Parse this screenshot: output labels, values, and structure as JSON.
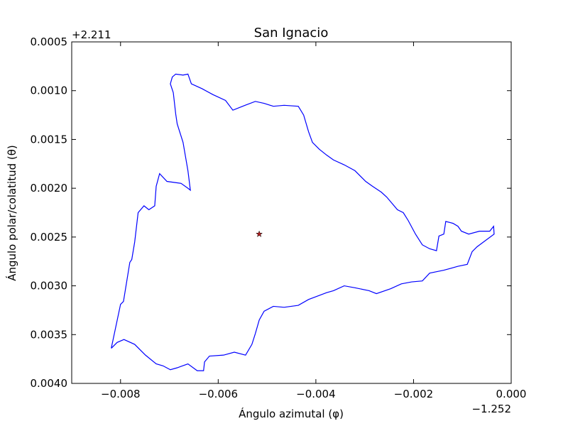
{
  "chart_data": {
    "type": "line",
    "title": "San Ignacio",
    "xlabel": "Ángulo azimutal (φ)",
    "ylabel": "Ángulo polar/colatitud (θ)",
    "x_offset_label": "−1.252",
    "y_offset_label": "+2.211",
    "color": "#0000ff",
    "x": [
      -0.00819,
      -0.008,
      -0.00794,
      -0.00781,
      -0.00777,
      -0.00771,
      -0.00764,
      -0.00752,
      -0.00742,
      -0.0073,
      -0.00727,
      -0.0072,
      -0.00705,
      -0.00676,
      -0.00662,
      -0.00657,
      -0.00662,
      -0.00672,
      -0.00684,
      -0.00687,
      -0.00692,
      -0.00698,
      -0.00694,
      -0.00687,
      -0.00672,
      -0.00662,
      -0.00655,
      -0.00633,
      -0.00611,
      -0.00585,
      -0.0057,
      -0.00545,
      -0.00524,
      -0.00506,
      -0.00487,
      -0.00465,
      -0.00436,
      -0.00425,
      -0.00415,
      -0.00407,
      -0.00393,
      -0.00378,
      -0.00364,
      -0.00342,
      -0.0032,
      -0.00298,
      -0.00284,
      -0.00266,
      -0.00255,
      -0.00233,
      -0.00221,
      -0.00211,
      -0.00196,
      -0.00182,
      -0.00167,
      -0.00153,
      -0.00148,
      -0.00138,
      -0.00134,
      -0.00119,
      -0.00109,
      -0.00102,
      -0.00087,
      -0.00065,
      -0.00044,
      -0.00036,
      -0.00035,
      -0.0007,
      -0.0008,
      -0.0009,
      -0.00109,
      -0.00138,
      -0.00167,
      -0.00182,
      -0.00204,
      -0.00225,
      -0.00247,
      -0.00276,
      -0.00291,
      -0.0032,
      -0.00342,
      -0.00364,
      -0.00378,
      -0.00415,
      -0.00436,
      -0.00465,
      -0.00487,
      -0.00506,
      -0.00516,
      -0.00524,
      -0.00531,
      -0.00544,
      -0.00567,
      -0.00589,
      -0.00618,
      -0.00628,
      -0.0063,
      -0.00643,
      -0.00662,
      -0.00684,
      -0.00698,
      -0.00713,
      -0.00727,
      -0.00749,
      -0.00771,
      -0.00793,
      -0.00807,
      -0.00819
    ],
    "values": [
      0.00364,
      0.00319,
      0.00316,
      0.00276,
      0.00273,
      0.00255,
      0.00225,
      0.00218,
      0.00222,
      0.00218,
      0.00198,
      0.00185,
      0.00193,
      0.00195,
      0.002,
      0.00202,
      0.00182,
      0.00153,
      0.00134,
      0.00124,
      0.00102,
      0.00093,
      0.00086,
      0.00083,
      0.00084,
      0.00083,
      0.00093,
      0.00098,
      0.00104,
      0.0011,
      0.0012,
      0.00115,
      0.00111,
      0.00113,
      0.00116,
      0.00115,
      0.00116,
      0.00125,
      0.00142,
      0.00153,
      0.0016,
      0.00166,
      0.00171,
      0.00176,
      0.00182,
      0.00193,
      0.00198,
      0.00204,
      0.00209,
      0.00222,
      0.00225,
      0.00233,
      0.00247,
      0.00258,
      0.00262,
      0.00264,
      0.00249,
      0.00247,
      0.00234,
      0.00236,
      0.00239,
      0.00244,
      0.00247,
      0.00244,
      0.00244,
      0.00239,
      0.00247,
      0.0026,
      0.00265,
      0.00278,
      0.0028,
      0.00284,
      0.00287,
      0.00295,
      0.00296,
      0.00298,
      0.00303,
      0.00308,
      0.00305,
      0.00302,
      0.003,
      0.00305,
      0.00307,
      0.00314,
      0.0032,
      0.00322,
      0.00321,
      0.00326,
      0.00335,
      0.00349,
      0.0036,
      0.00371,
      0.00368,
      0.00371,
      0.00372,
      0.00378,
      0.00387,
      0.00387,
      0.0038,
      0.00384,
      0.00386,
      0.00382,
      0.0038,
      0.00371,
      0.0036,
      0.00355,
      0.00358,
      0.00364
    ],
    "star": {
      "x": -0.00516,
      "y": 0.00247,
      "color": "#b22222"
    },
    "xlim": [
      -0.009,
      0
    ],
    "ylim": [
      0.004,
      0.0005
    ],
    "xticks": [
      {
        "value": -0.008,
        "label": "−0.008"
      },
      {
        "value": -0.006,
        "label": "−0.006"
      },
      {
        "value": -0.004,
        "label": "−0.004"
      },
      {
        "value": -0.002,
        "label": "−0.002"
      },
      {
        "value": 0,
        "label": "0.000"
      }
    ],
    "yticks": [
      0.0005,
      {
        "value": 0.001,
        "label": "0.0010"
      },
      0.0015,
      {
        "value": 0.002,
        "label": "0.0020"
      },
      0.0025,
      {
        "value": 0.003,
        "label": "0.0030"
      },
      0.0035,
      {
        "value": 0.004,
        "label": "0.0040"
      }
    ]
  }
}
